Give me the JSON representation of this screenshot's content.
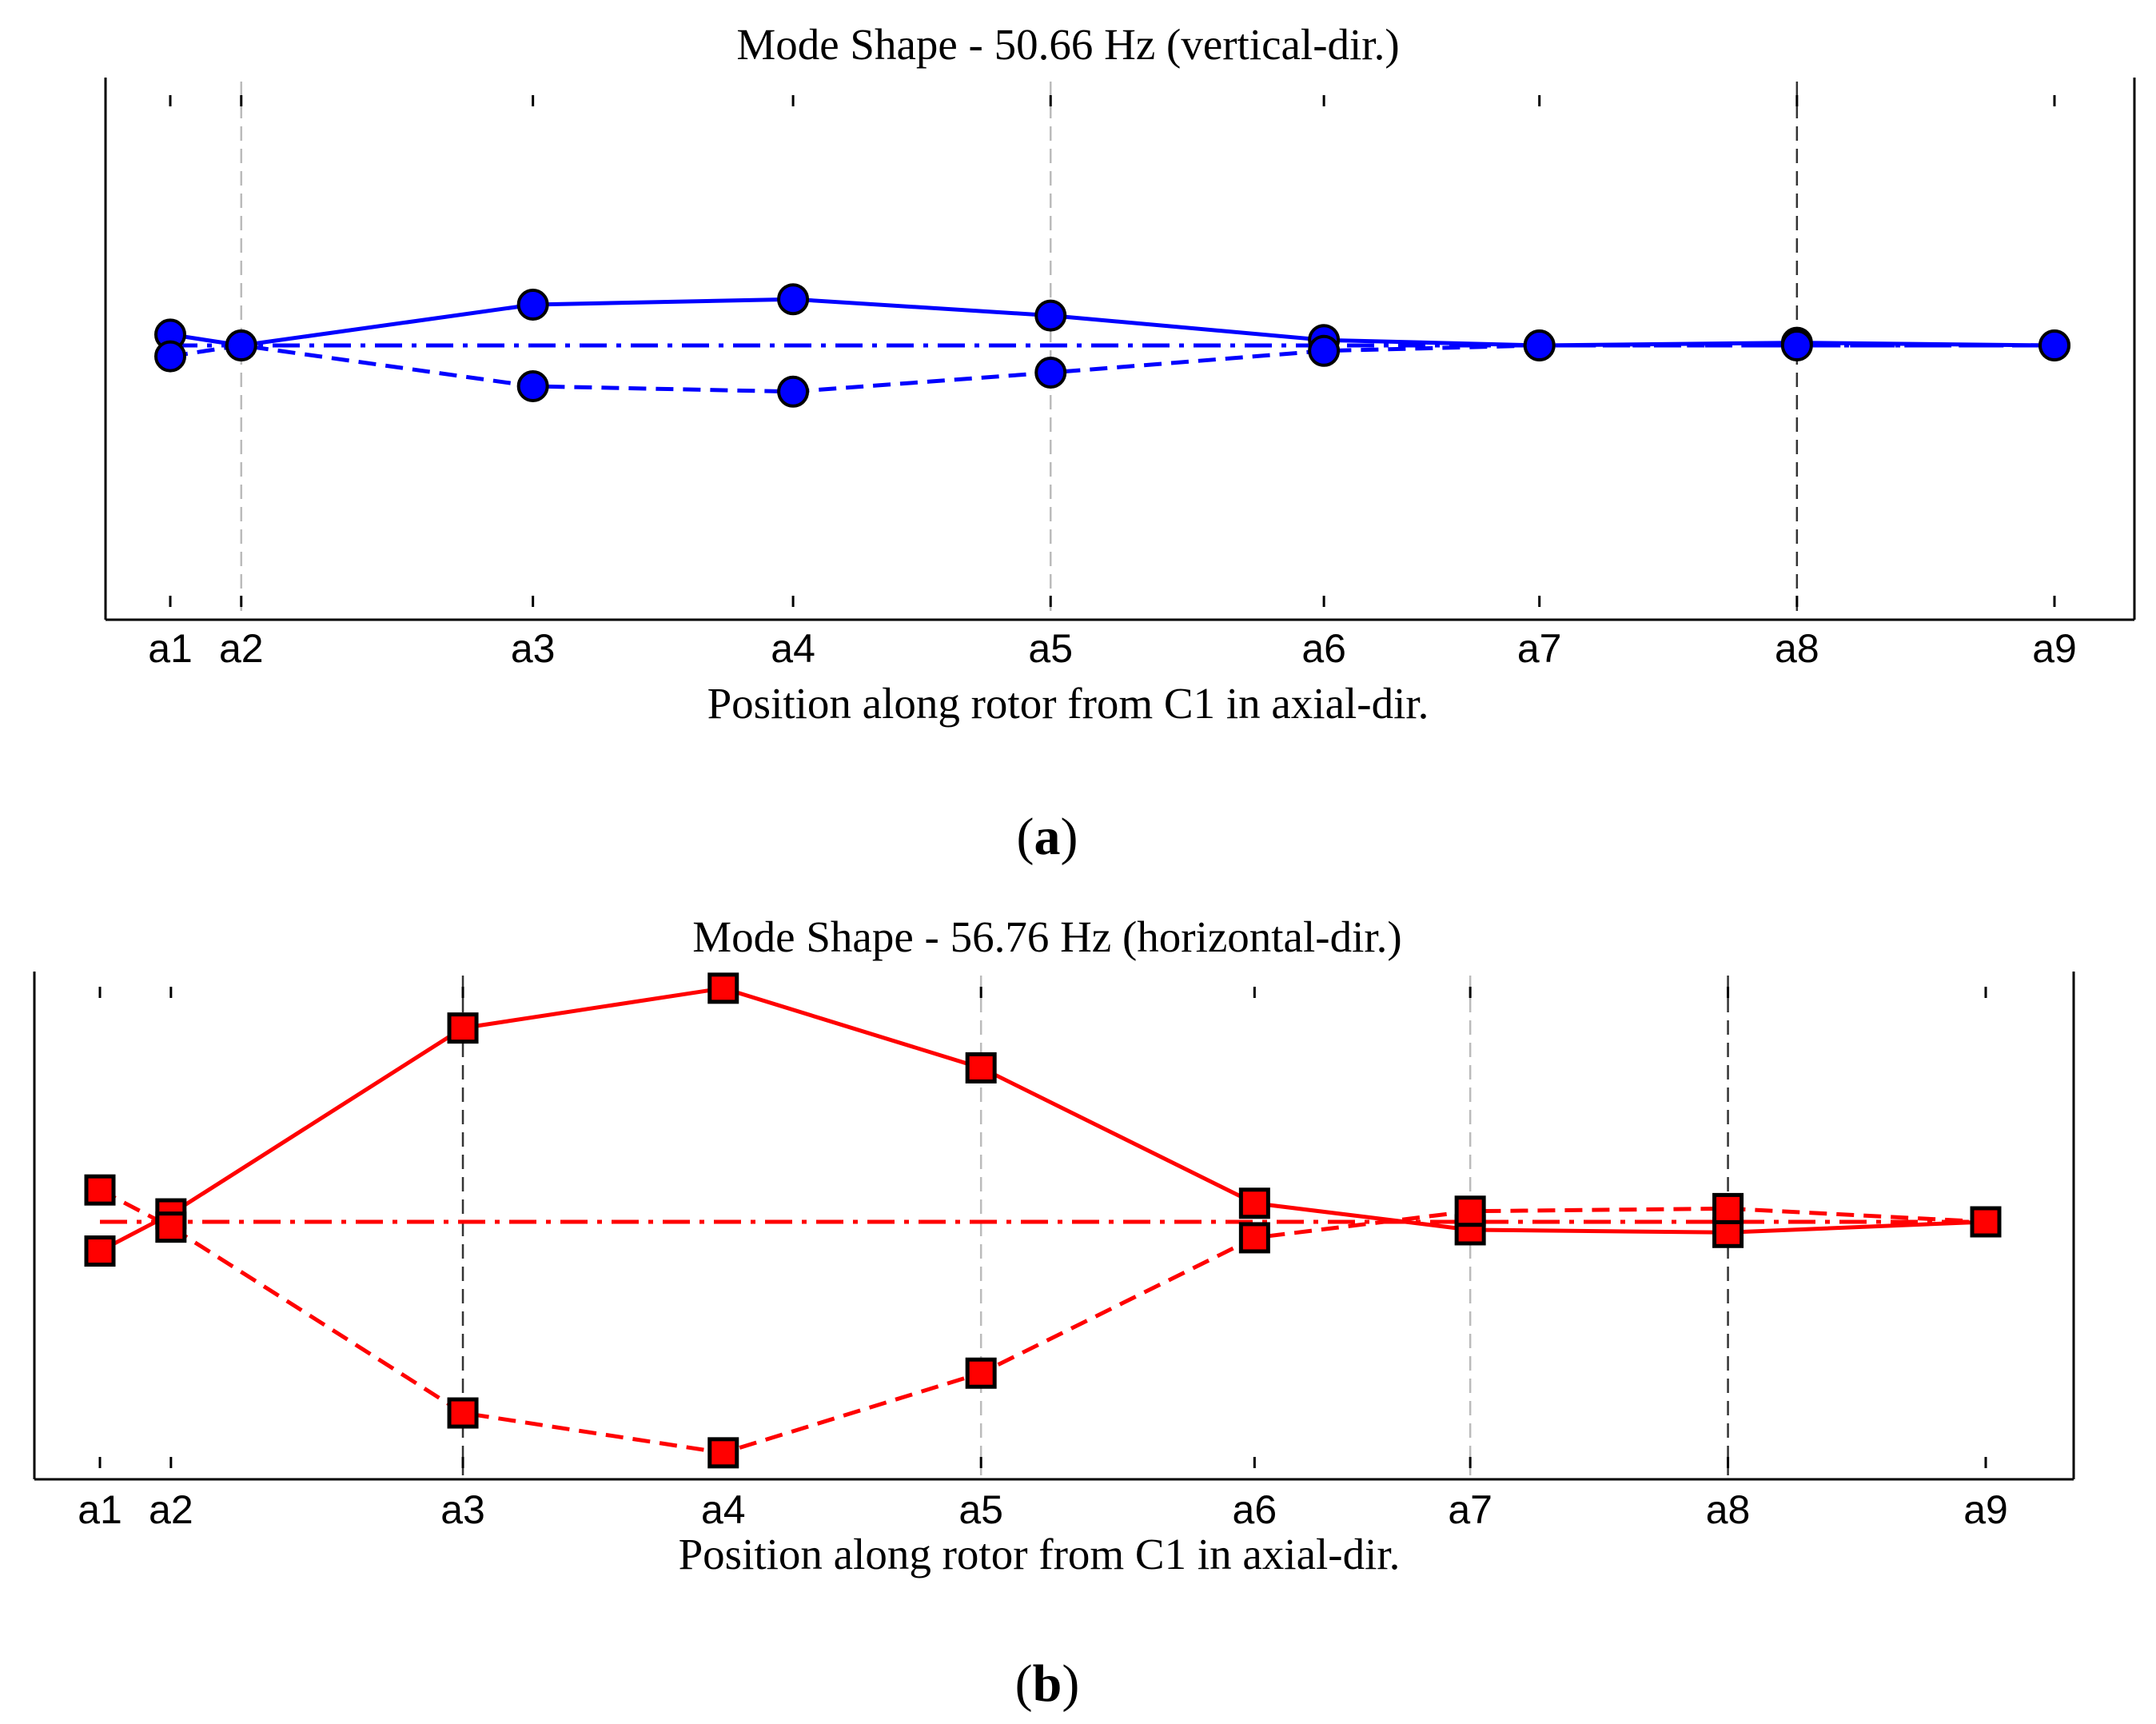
{
  "chart_data": [
    {
      "type": "line",
      "title": "Mode Shape - 50.66 Hz (vertical-dir.)",
      "xlabel": "Position along rotor from C1 in axial-dir.",
      "ylabel": "",
      "caption_letter": "a",
      "categories": [
        "a1",
        "a2",
        "a3",
        "a4",
        "a5",
        "a6",
        "a7",
        "a8",
        "a9"
      ],
      "x": [
        0,
        0.27,
        1.38,
        2.37,
        3.35,
        4.39,
        5.21,
        6.19,
        7.17
      ],
      "ylim": [
        -1,
        1
      ],
      "grid": "vertical dashed at a2, a5, a8",
      "color": "#0000ff",
      "marker": "circle",
      "series": [
        {
          "name": "upper",
          "line": "solid",
          "values": [
            0.04,
            0.0,
            0.15,
            0.17,
            0.11,
            0.02,
            0.0,
            0.01,
            0.0
          ]
        },
        {
          "name": "lower",
          "line": "dashed",
          "values": [
            -0.04,
            0.0,
            -0.15,
            -0.17,
            -0.1,
            -0.02,
            0.0,
            0.0,
            0.0
          ]
        },
        {
          "name": "centerline",
          "line": "dash-dot",
          "values": [
            0,
            0,
            0,
            0,
            0,
            0,
            0,
            0,
            0
          ]
        }
      ]
    },
    {
      "type": "line",
      "title": "Mode Shape - 56.76 Hz (horizontal-dir.)",
      "xlabel": "Position along rotor from C1 in axial-dir.",
      "ylabel": "",
      "caption_letter": "b",
      "categories": [
        "a1",
        "a2",
        "a3",
        "a4",
        "a5",
        "a6",
        "a7",
        "a8",
        "a9"
      ],
      "x": [
        0,
        0.27,
        1.38,
        2.37,
        3.35,
        4.39,
        5.21,
        6.19,
        7.17
      ],
      "ylim": [
        -1,
        1
      ],
      "grid": "vertical dashed at a3, a5, a7, a8",
      "color": "#ff0000",
      "marker": "square",
      "series": [
        {
          "name": "upper",
          "line": "solid",
          "values": [
            -0.11,
            0.03,
            0.73,
            0.88,
            0.58,
            0.07,
            -0.03,
            -0.04,
            0.0
          ]
        },
        {
          "name": "lower",
          "line": "dashed",
          "values": [
            0.12,
            -0.02,
            -0.72,
            -0.87,
            -0.57,
            -0.06,
            0.04,
            0.05,
            0.0
          ]
        },
        {
          "name": "centerline",
          "line": "dash-dot",
          "values": [
            0,
            0,
            0,
            0,
            0,
            0,
            0,
            0,
            0
          ]
        }
      ]
    }
  ]
}
